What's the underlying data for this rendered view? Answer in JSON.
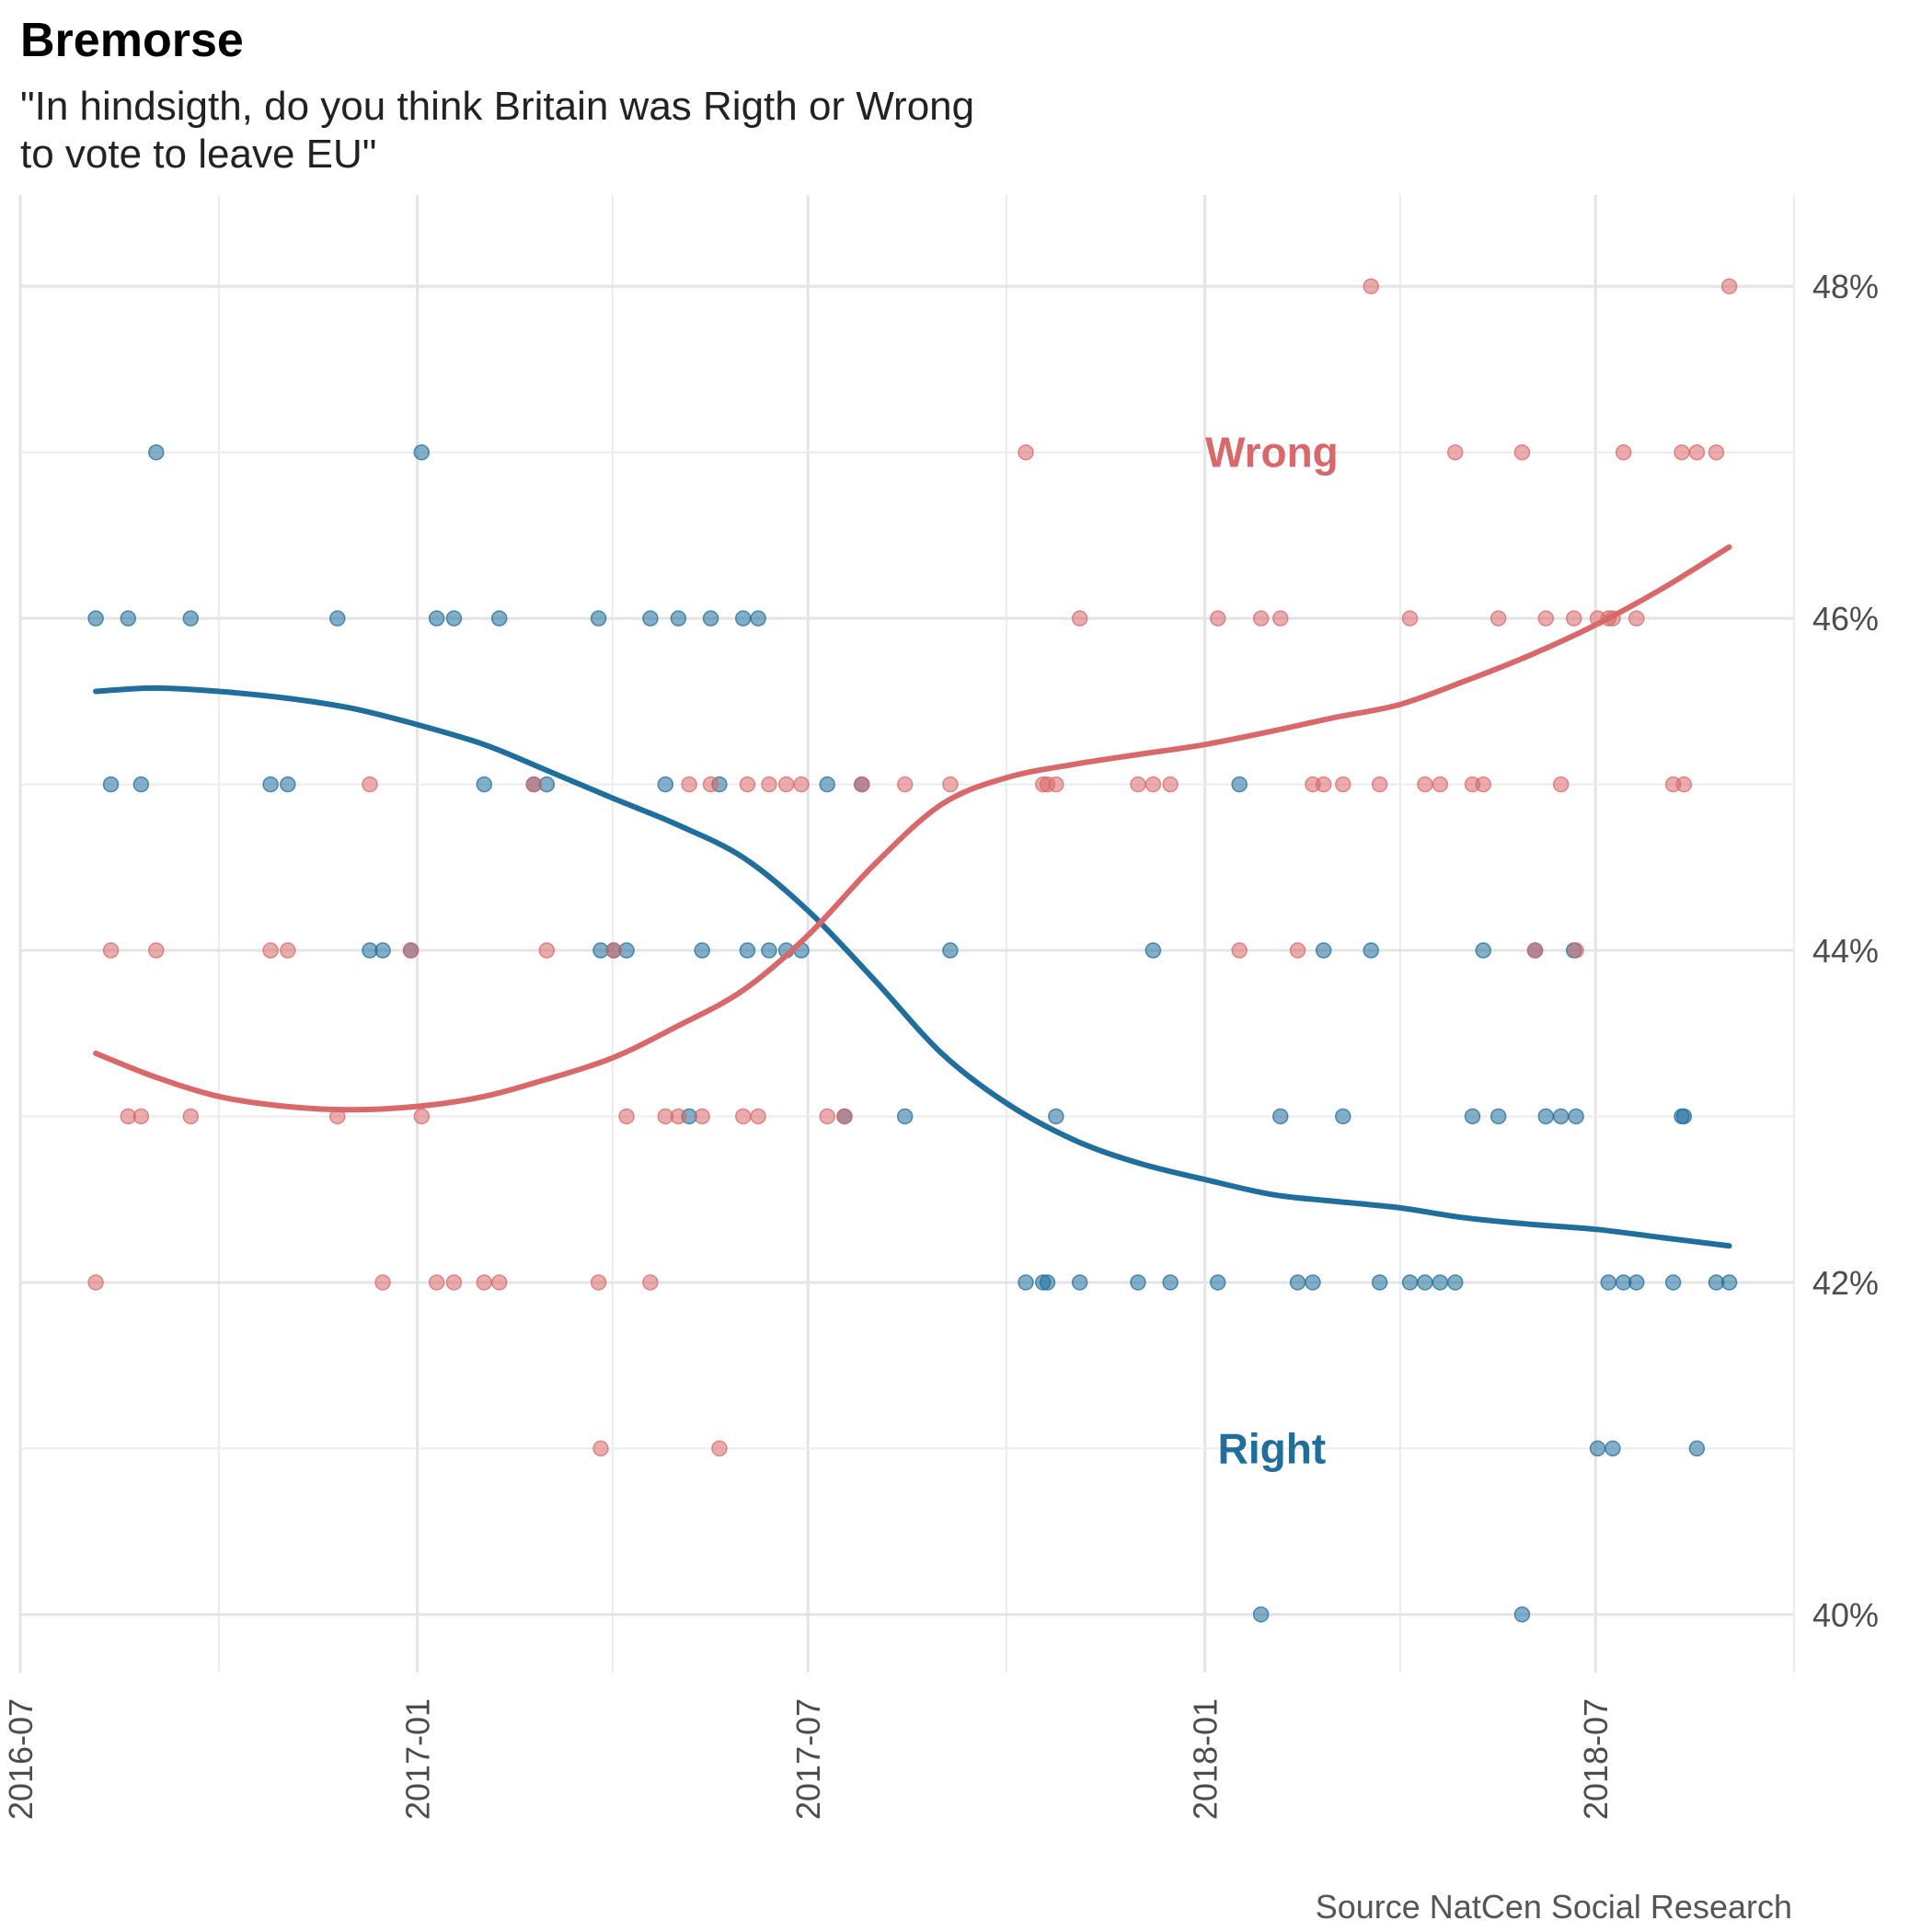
{
  "chart_data": {
    "type": "scatter",
    "title": "Bremorse",
    "subtitle_lines": [
      "\"In hindsigth, do you think Britain was Rigth or Wrong",
      "to vote to leave EU\""
    ],
    "caption": "Source NatCen Social Research",
    "xlabel": "",
    "ylabel": "",
    "x_axis": {
      "type": "date",
      "range": [
        "2016-07-01",
        "2018-10-01"
      ],
      "ticks": [
        "2016-07",
        "2017-01",
        "2017-07",
        "2018-01",
        "2018-07"
      ]
    },
    "y_axis": {
      "position": "right",
      "range": [
        39.65,
        48.55
      ],
      "ticks": [
        40,
        42,
        44,
        46,
        48
      ],
      "tick_labels": [
        "40%",
        "42%",
        "44%",
        "46%",
        "48%"
      ]
    },
    "grid": true,
    "series": [
      {
        "name": "Right",
        "color": "#1f6e9c",
        "points": [
          [
            "2016-08-05",
            46
          ],
          [
            "2016-08-12",
            45
          ],
          [
            "2016-08-20",
            46
          ],
          [
            "2016-08-26",
            45
          ],
          [
            "2016-09-02",
            47
          ],
          [
            "2016-09-18",
            46
          ],
          [
            "2016-10-25",
            45
          ],
          [
            "2016-11-02",
            45
          ],
          [
            "2016-11-25",
            46
          ],
          [
            "2016-12-10",
            44
          ],
          [
            "2016-12-16",
            44
          ],
          [
            "2016-12-29",
            44
          ],
          [
            "2017-01-03",
            47
          ],
          [
            "2017-01-10",
            46
          ],
          [
            "2017-01-18",
            46
          ],
          [
            "2017-02-01",
            45
          ],
          [
            "2017-02-08",
            46
          ],
          [
            "2017-02-24",
            45
          ],
          [
            "2017-03-02",
            45
          ],
          [
            "2017-03-26",
            46
          ],
          [
            "2017-03-27",
            44
          ],
          [
            "2017-04-02",
            44
          ],
          [
            "2017-04-08",
            44
          ],
          [
            "2017-04-19",
            46
          ],
          [
            "2017-04-26",
            45
          ],
          [
            "2017-05-02",
            46
          ],
          [
            "2017-05-07",
            43
          ],
          [
            "2017-05-13",
            44
          ],
          [
            "2017-05-17",
            46
          ],
          [
            "2017-05-21",
            45
          ],
          [
            "2017-06-01",
            46
          ],
          [
            "2017-06-03",
            44
          ],
          [
            "2017-06-08",
            46
          ],
          [
            "2017-06-13",
            44
          ],
          [
            "2017-06-21",
            44
          ],
          [
            "2017-06-28",
            44
          ],
          [
            "2017-07-10",
            45
          ],
          [
            "2017-07-18",
            43
          ],
          [
            "2017-07-26",
            45
          ],
          [
            "2017-08-15",
            43
          ],
          [
            "2017-09-05",
            44
          ],
          [
            "2017-10-10",
            42
          ],
          [
            "2017-10-18",
            42
          ],
          [
            "2017-10-20",
            42
          ],
          [
            "2017-10-24",
            43
          ],
          [
            "2017-11-04",
            42
          ],
          [
            "2017-12-01",
            42
          ],
          [
            "2017-12-08",
            44
          ],
          [
            "2017-12-16",
            42
          ],
          [
            "2018-01-07",
            42
          ],
          [
            "2018-01-17",
            45
          ],
          [
            "2018-01-27",
            40
          ],
          [
            "2018-02-05",
            43
          ],
          [
            "2018-02-13",
            42
          ],
          [
            "2018-02-20",
            42
          ],
          [
            "2018-02-25",
            44
          ],
          [
            "2018-03-06",
            43
          ],
          [
            "2018-03-19",
            44
          ],
          [
            "2018-03-23",
            42
          ],
          [
            "2018-04-06",
            42
          ],
          [
            "2018-04-13",
            42
          ],
          [
            "2018-04-20",
            42
          ],
          [
            "2018-04-27",
            42
          ],
          [
            "2018-05-05",
            43
          ],
          [
            "2018-05-10",
            44
          ],
          [
            "2018-05-17",
            43
          ],
          [
            "2018-05-28",
            40
          ],
          [
            "2018-06-03",
            44
          ],
          [
            "2018-06-08",
            43
          ],
          [
            "2018-06-15",
            43
          ],
          [
            "2018-06-21",
            44
          ],
          [
            "2018-06-22",
            43
          ],
          [
            "2018-07-02",
            41
          ],
          [
            "2018-07-07",
            42
          ],
          [
            "2018-07-09",
            41
          ],
          [
            "2018-07-14",
            42
          ],
          [
            "2018-07-20",
            42
          ],
          [
            "2018-08-06",
            42
          ],
          [
            "2018-08-10",
            43
          ],
          [
            "2018-08-11",
            43
          ],
          [
            "2018-08-17",
            41
          ],
          [
            "2018-08-26",
            42
          ],
          [
            "2018-09-01",
            42
          ]
        ],
        "trend": [
          [
            "2016-08-05",
            45.56
          ],
          [
            "2016-09-01",
            45.58
          ],
          [
            "2016-10-01",
            45.56
          ],
          [
            "2016-11-01",
            45.52
          ],
          [
            "2016-12-01",
            45.46
          ],
          [
            "2017-01-01",
            45.36
          ],
          [
            "2017-02-01",
            45.24
          ],
          [
            "2017-03-01",
            45.09
          ],
          [
            "2017-04-01",
            44.92
          ],
          [
            "2017-05-01",
            44.76
          ],
          [
            "2017-06-01",
            44.56
          ],
          [
            "2017-07-01",
            44.24
          ],
          [
            "2017-08-01",
            43.82
          ],
          [
            "2017-09-01",
            43.38
          ],
          [
            "2017-10-01",
            43.08
          ],
          [
            "2017-11-01",
            42.86
          ],
          [
            "2017-12-01",
            42.72
          ],
          [
            "2018-01-01",
            42.62
          ],
          [
            "2018-02-01",
            42.53
          ],
          [
            "2018-03-01",
            42.49
          ],
          [
            "2018-04-01",
            42.45
          ],
          [
            "2018-05-01",
            42.39
          ],
          [
            "2018-06-01",
            42.35
          ],
          [
            "2018-07-01",
            42.32
          ],
          [
            "2018-08-01",
            42.27
          ],
          [
            "2018-09-01",
            42.22
          ]
        ]
      },
      {
        "name": "Wrong",
        "color": "#d9686a",
        "points": [
          [
            "2016-08-05",
            42
          ],
          [
            "2016-08-12",
            44
          ],
          [
            "2016-08-20",
            43
          ],
          [
            "2016-08-26",
            43
          ],
          [
            "2016-09-02",
            44
          ],
          [
            "2016-09-18",
            43
          ],
          [
            "2016-10-25",
            44
          ],
          [
            "2016-11-02",
            44
          ],
          [
            "2016-11-25",
            43
          ],
          [
            "2016-12-10",
            45
          ],
          [
            "2016-12-16",
            42
          ],
          [
            "2016-12-29",
            44
          ],
          [
            "2017-01-03",
            43
          ],
          [
            "2017-01-10",
            42
          ],
          [
            "2017-01-18",
            42
          ],
          [
            "2017-02-01",
            42
          ],
          [
            "2017-02-08",
            42
          ],
          [
            "2017-02-24",
            45
          ],
          [
            "2017-03-02",
            44
          ],
          [
            "2017-03-26",
            42
          ],
          [
            "2017-03-27",
            41
          ],
          [
            "2017-04-02",
            44
          ],
          [
            "2017-04-08",
            43
          ],
          [
            "2017-04-19",
            42
          ],
          [
            "2017-04-26",
            43
          ],
          [
            "2017-05-02",
            43
          ],
          [
            "2017-05-07",
            45
          ],
          [
            "2017-05-13",
            43
          ],
          [
            "2017-05-17",
            45
          ],
          [
            "2017-05-21",
            41
          ],
          [
            "2017-06-01",
            43
          ],
          [
            "2017-06-03",
            45
          ],
          [
            "2017-06-08",
            43
          ],
          [
            "2017-06-13",
            45
          ],
          [
            "2017-06-21",
            45
          ],
          [
            "2017-06-28",
            45
          ],
          [
            "2017-07-10",
            43
          ],
          [
            "2017-07-18",
            43
          ],
          [
            "2017-07-26",
            45
          ],
          [
            "2017-08-15",
            45
          ],
          [
            "2017-09-05",
            45
          ],
          [
            "2017-10-10",
            47
          ],
          [
            "2017-10-18",
            45
          ],
          [
            "2017-10-20",
            45
          ],
          [
            "2017-10-24",
            45
          ],
          [
            "2017-11-04",
            46
          ],
          [
            "2017-12-01",
            45
          ],
          [
            "2017-12-08",
            45
          ],
          [
            "2017-12-16",
            45
          ],
          [
            "2018-01-07",
            46
          ],
          [
            "2018-01-17",
            44
          ],
          [
            "2018-01-27",
            46
          ],
          [
            "2018-02-05",
            46
          ],
          [
            "2018-02-13",
            44
          ],
          [
            "2018-02-20",
            45
          ],
          [
            "2018-02-25",
            45
          ],
          [
            "2018-03-06",
            45
          ],
          [
            "2018-03-19",
            48
          ],
          [
            "2018-03-23",
            45
          ],
          [
            "2018-04-06",
            46
          ],
          [
            "2018-04-13",
            45
          ],
          [
            "2018-04-20",
            45
          ],
          [
            "2018-04-27",
            47
          ],
          [
            "2018-05-05",
            45
          ],
          [
            "2018-05-10",
            45
          ],
          [
            "2018-05-17",
            46
          ],
          [
            "2018-05-28",
            47
          ],
          [
            "2018-06-03",
            44
          ],
          [
            "2018-06-08",
            46
          ],
          [
            "2018-06-15",
            45
          ],
          [
            "2018-06-21",
            46
          ],
          [
            "2018-06-22",
            44
          ],
          [
            "2018-07-02",
            46
          ],
          [
            "2018-07-07",
            46
          ],
          [
            "2018-07-09",
            46
          ],
          [
            "2018-07-14",
            47
          ],
          [
            "2018-07-20",
            46
          ],
          [
            "2018-08-06",
            45
          ],
          [
            "2018-08-10",
            47
          ],
          [
            "2018-08-11",
            45
          ],
          [
            "2018-08-17",
            47
          ],
          [
            "2018-08-26",
            47
          ],
          [
            "2018-09-01",
            48
          ]
        ],
        "trend": [
          [
            "2016-08-05",
            43.38
          ],
          [
            "2016-09-01",
            43.24
          ],
          [
            "2016-10-01",
            43.12
          ],
          [
            "2016-11-01",
            43.06
          ],
          [
            "2016-12-01",
            43.04
          ],
          [
            "2017-01-01",
            43.06
          ],
          [
            "2017-02-01",
            43.12
          ],
          [
            "2017-03-01",
            43.22
          ],
          [
            "2017-04-01",
            43.35
          ],
          [
            "2017-05-01",
            43.54
          ],
          [
            "2017-06-01",
            43.76
          ],
          [
            "2017-07-01",
            44.09
          ],
          [
            "2017-08-01",
            44.52
          ],
          [
            "2017-09-01",
            44.88
          ],
          [
            "2017-10-01",
            45.04
          ],
          [
            "2017-11-01",
            45.12
          ],
          [
            "2017-12-01",
            45.18
          ],
          [
            "2018-01-01",
            45.24
          ],
          [
            "2018-02-01",
            45.32
          ],
          [
            "2018-03-01",
            45.4
          ],
          [
            "2018-04-01",
            45.48
          ],
          [
            "2018-05-01",
            45.62
          ],
          [
            "2018-06-01",
            45.78
          ],
          [
            "2018-07-01",
            45.96
          ],
          [
            "2018-08-01",
            46.18
          ],
          [
            "2018-09-01",
            46.43
          ]
        ]
      }
    ],
    "annotations": [
      {
        "text": "Wrong",
        "series": "Wrong",
        "x": "2018-02-01",
        "y": 47
      },
      {
        "text": "Right",
        "series": "Right",
        "x": "2018-02-01",
        "y": 41
      }
    ]
  }
}
